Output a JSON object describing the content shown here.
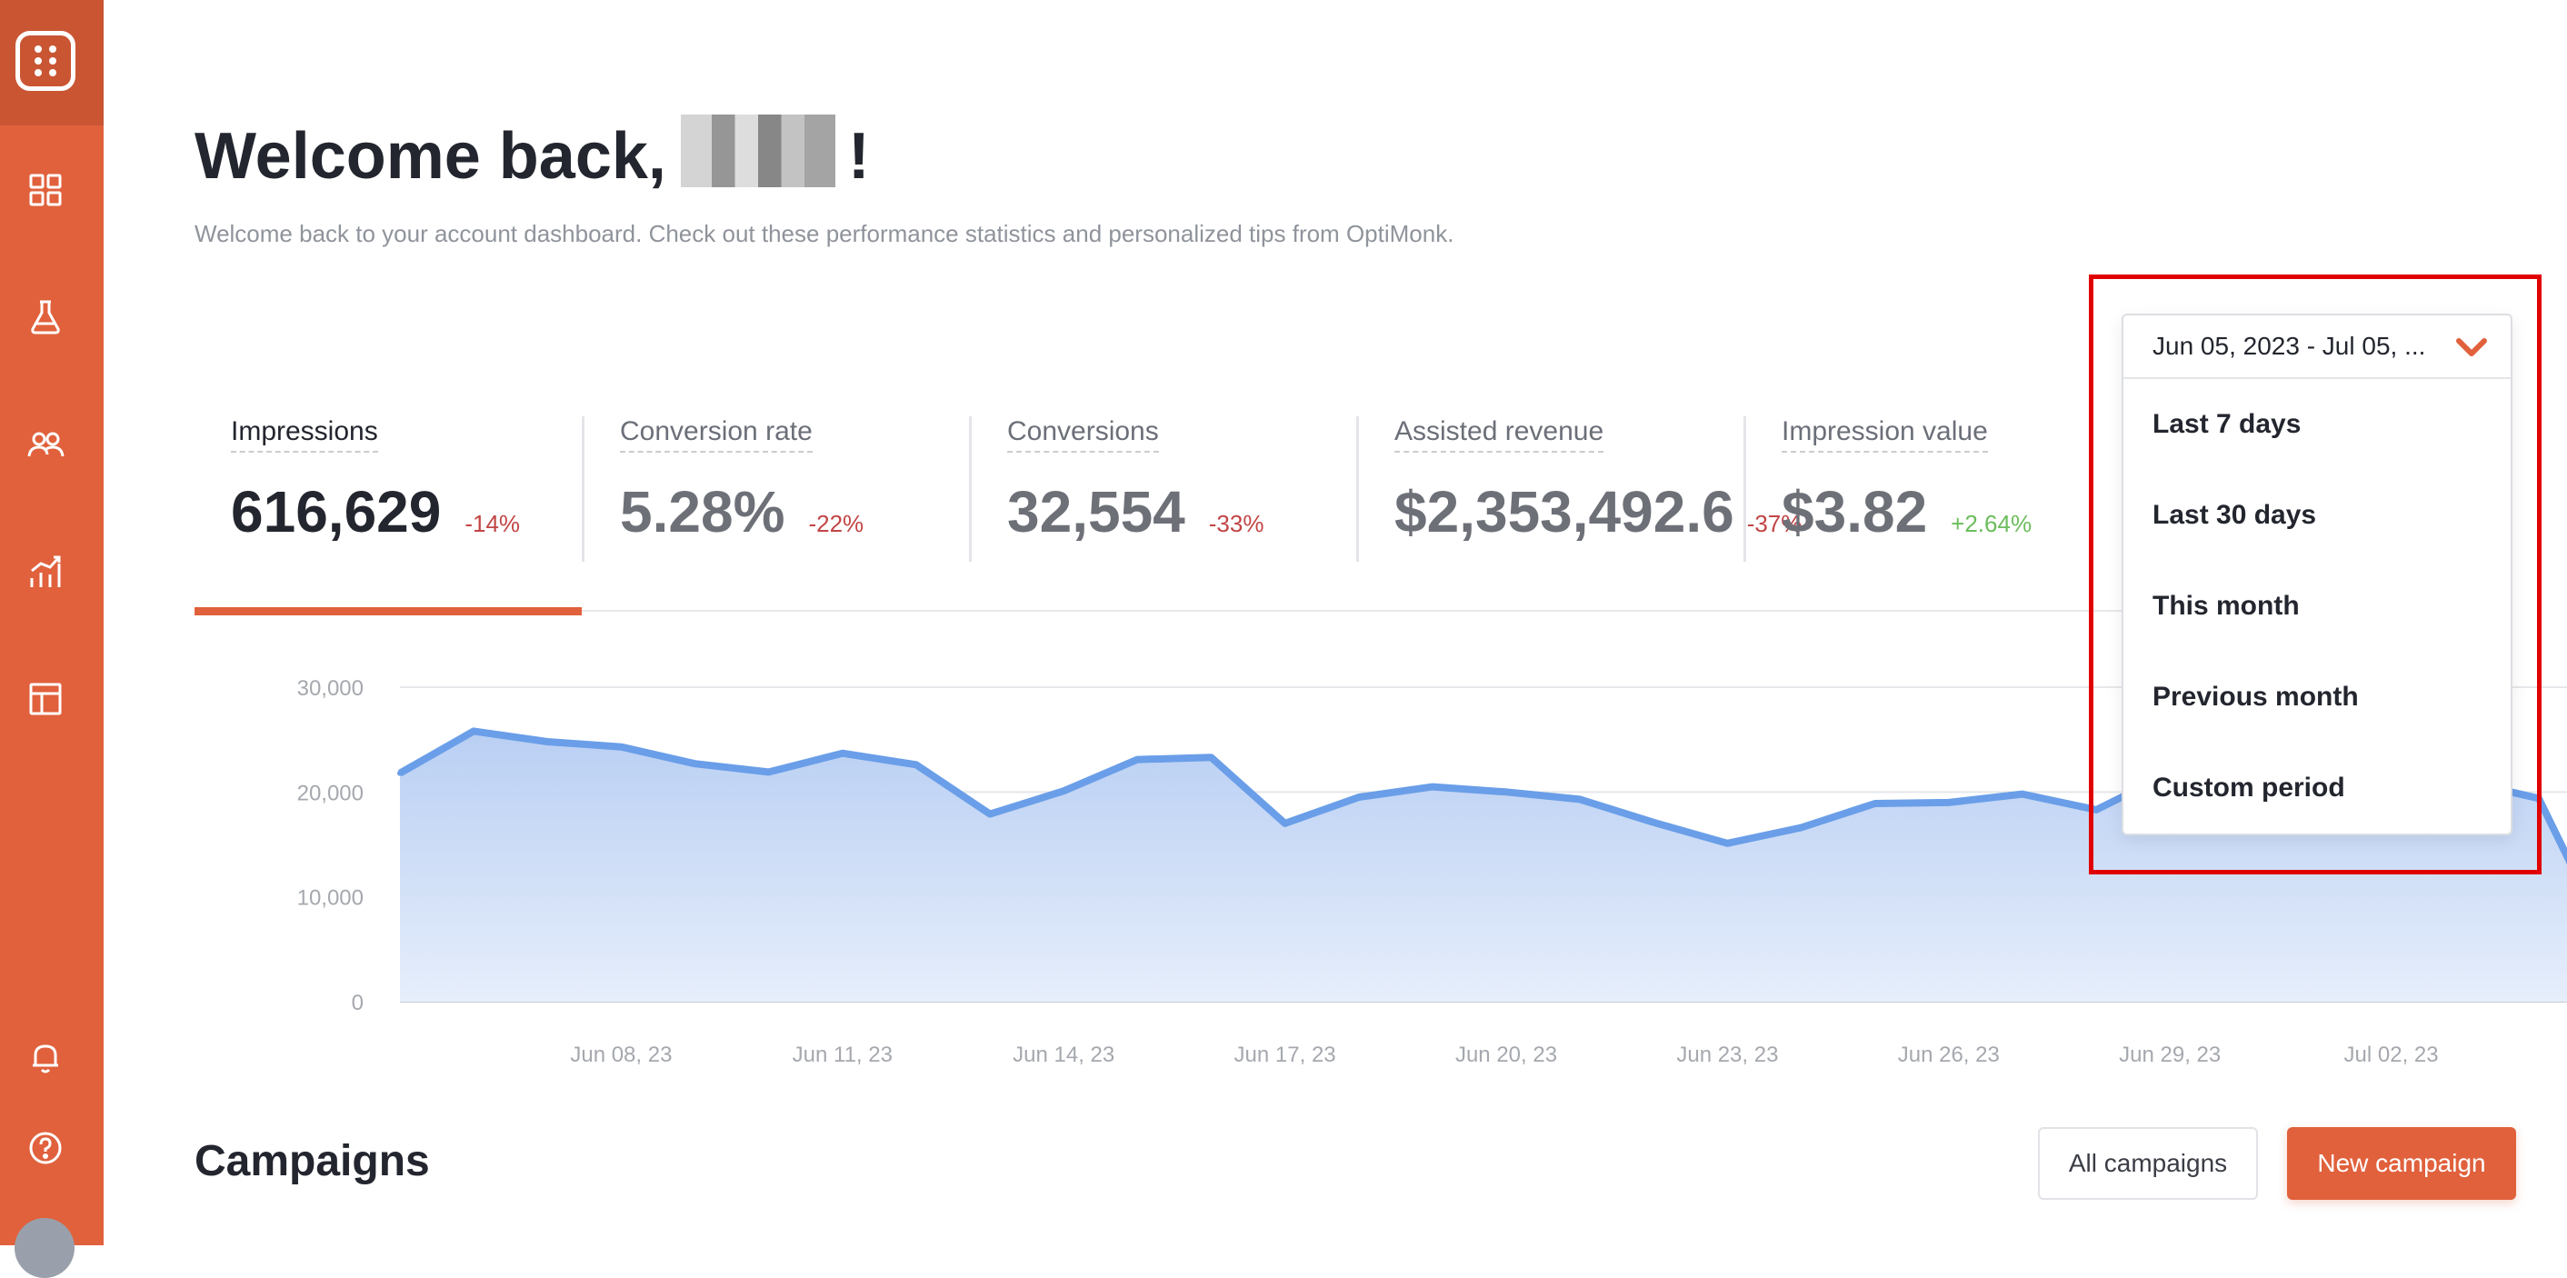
{
  "header": {
    "title_prefix": "Welcome back,",
    "title_suffix": "!",
    "subtitle": "Welcome back to your account dashboard. Check out these performance statistics and personalized tips from OptiMonk."
  },
  "metrics": [
    {
      "label": "Impressions",
      "value": "616,629",
      "change": "-14%"
    },
    {
      "label": "Conversion rate",
      "value": "5.28%",
      "change": "-22%"
    },
    {
      "label": "Conversions",
      "value": "32,554",
      "change": "-33%"
    },
    {
      "label": "Assisted revenue",
      "value": "$2,353,492.6",
      "change": "-37%"
    },
    {
      "label": "Impression value",
      "value": "$3.82",
      "change": "+2.64%"
    }
  ],
  "date_dropdown": {
    "selected": "Jun 05, 2023 - Jul 05, ...",
    "options": [
      "Last 7 days",
      "Last 30 days",
      "This month",
      "Previous month",
      "Custom period"
    ]
  },
  "campaigns": {
    "title": "Campaigns",
    "all_label": "All campaigns",
    "new_label": "New campaign"
  },
  "colors": {
    "accent": "#e0613c",
    "line": "#6a9ee8",
    "negative": "#c24545",
    "positive": "#6bbd5b"
  },
  "chart_data": {
    "type": "area",
    "y_ticks": [
      "30,000",
      "20,000",
      "10,000",
      "0"
    ],
    "ylim": [
      0,
      30000
    ],
    "x_tick_labels": [
      "Jun 08, 23",
      "Jun 11, 23",
      "Jun 14, 23",
      "Jun 17, 23",
      "Jun 20, 23",
      "Jun 23, 23",
      "Jun 26, 23",
      "Jun 29, 23",
      "Jul 02, 23"
    ],
    "x_tick_index": [
      3,
      6,
      9,
      12,
      15,
      18,
      21,
      24,
      27
    ],
    "values": [
      21800,
      25800,
      24800,
      24300,
      22700,
      21900,
      23700,
      22600,
      17900,
      20100,
      23100,
      23300,
      17000,
      19500,
      20500,
      20000,
      19300,
      17100,
      15100,
      16600,
      18900,
      19000,
      19800,
      18300,
      21800,
      20200,
      20800,
      19500,
      21000,
      19400,
      5000
    ]
  }
}
